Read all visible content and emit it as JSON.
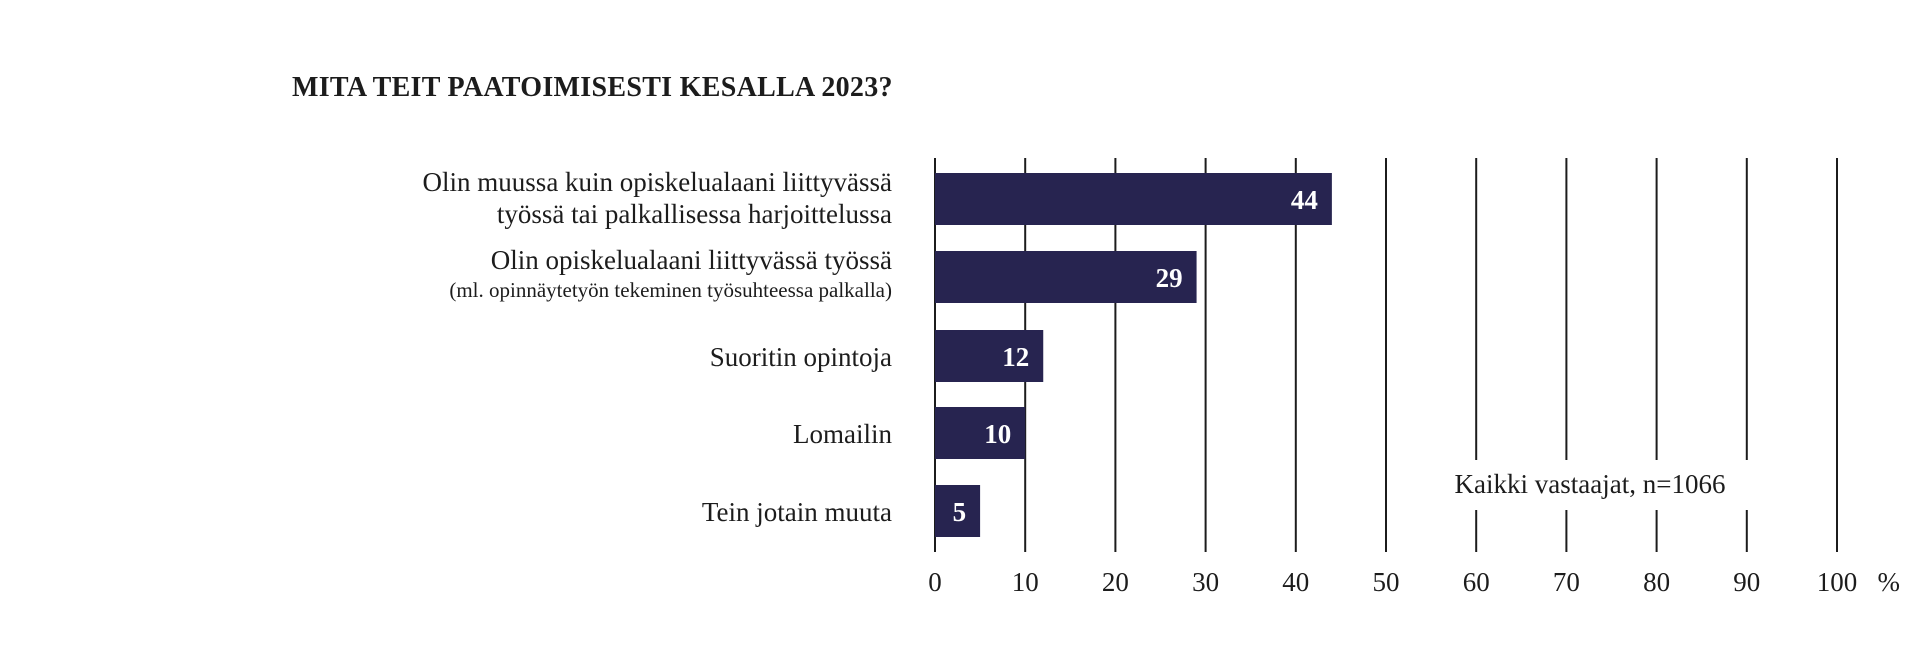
{
  "chart_data": {
    "type": "bar",
    "orientation": "horizontal",
    "title": "MITA TEIT PAATOIMISESTI KESALLA 2023?",
    "categories": [
      [
        "Olin muussa kuin opiskelualaani liittyvässä",
        "työssä tai palkallisessa harjoittelussa"
      ],
      [
        "Olin opiskelualaani liittyvässä työssä",
        "(ml. opinnäytetyön tekeminen työsuhteessa palkalla)"
      ],
      [
        "Suoritin opintoja"
      ],
      [
        "Lomailin"
      ],
      [
        "Tein jotain muuta"
      ]
    ],
    "values": [
      44,
      29,
      12,
      10,
      5
    ],
    "xlim": [
      0,
      100
    ],
    "xticks": [
      0,
      10,
      20,
      30,
      40,
      50,
      60,
      70,
      80,
      90,
      100
    ],
    "xunit": "%",
    "grid": true,
    "bar_color": "#272450",
    "note": "Kaikki vastaajat, n=1066"
  }
}
